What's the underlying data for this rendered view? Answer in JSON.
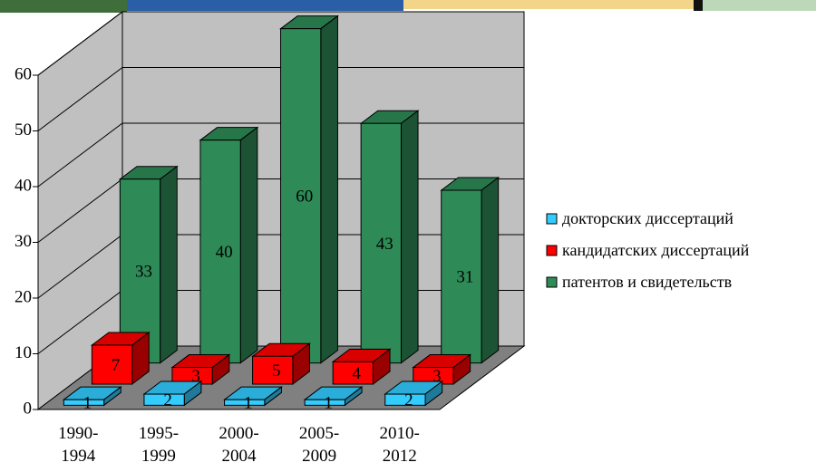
{
  "chart_data": {
    "type": "bar3d",
    "categories": [
      "1990-\n1994",
      "1995-\n1999",
      "2000-\n2004",
      "2005-\n2009",
      "2010-\n2012"
    ],
    "series": [
      {
        "name": "докторских диссертаций",
        "color": "#33ccff",
        "values": [
          1,
          2,
          1,
          1,
          2
        ]
      },
      {
        "name": "кандидатских диссертаций",
        "color": "#ff0000",
        "values": [
          7,
          3,
          5,
          4,
          3
        ]
      },
      {
        "name": "патентов и свидетельств",
        "color": "#2e8b57",
        "values": [
          33,
          40,
          60,
          43,
          31
        ]
      }
    ],
    "ylim": [
      0,
      60
    ],
    "yticks": [
      0,
      10,
      20,
      30,
      40,
      50,
      60
    ],
    "grid": true,
    "legend": "right"
  }
}
